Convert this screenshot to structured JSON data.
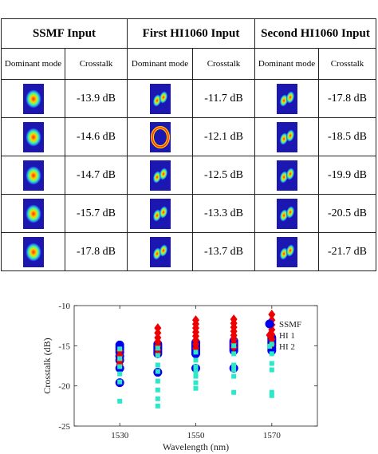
{
  "table": {
    "groups": [
      "SSMF Input",
      "First HI1060 Input",
      "Second HI1060 Input"
    ],
    "subheaders": [
      "Dominant mode",
      "Crosstalk",
      "Dominant mode",
      "Crosstalk",
      "Dominant mode",
      "Crosstalk"
    ],
    "rows": [
      {
        "ssmf": "-13.9 dB",
        "hi1": "-11.7 dB",
        "hi2": "-17.8 dB"
      },
      {
        "ssmf": "-14.6 dB",
        "hi1": "-12.1 dB",
        "hi2": "-18.5 dB"
      },
      {
        "ssmf": "-14.7 dB",
        "hi1": "-12.5 dB",
        "hi2": "-19.9 dB"
      },
      {
        "ssmf": "-15.7 dB",
        "hi1": "-13.3 dB",
        "hi2": "-20.5 dB"
      },
      {
        "ssmf": "-17.8 dB",
        "hi1": "-13.7 dB",
        "hi2": "-21.7 dB"
      }
    ],
    "mode_icons": {
      "ssmf": [
        "fundamental-mode-icon",
        "fundamental-mode-icon",
        "fundamental-mode-icon",
        "fundamental-mode-icon",
        "fundamental-mode-icon"
      ],
      "hi1": [
        "two-lobe-mode-icon",
        "ring-mode-icon",
        "two-lobe-mode-icon",
        "two-lobe-mode-icon",
        "two-lobe-mode-icon"
      ],
      "hi2": [
        "two-lobe-mode-icon",
        "two-lobe-mode-icon",
        "two-lobe-mode-icon",
        "two-lobe-mode-icon",
        "two-lobe-mode-icon"
      ]
    }
  },
  "chart_data": {
    "type": "scatter",
    "xlabel": "Wavelength (nm)",
    "ylabel": "Crosstalk (dB)",
    "xlim": [
      1518,
      1582
    ],
    "ylim": [
      -25,
      -10
    ],
    "xticks": [
      1530,
      1550,
      1570
    ],
    "yticks": [
      -10,
      -15,
      -20,
      -25
    ],
    "grid": false,
    "legend_position": "top-right",
    "series": [
      {
        "name": "SSMF",
        "marker": "circle",
        "color": "#0000ee",
        "x": [
          1530,
          1530,
          1530,
          1530,
          1530,
          1530,
          1530,
          1530,
          1540,
          1540,
          1540,
          1540,
          1540,
          1540,
          1540,
          1540,
          1550,
          1550,
          1550,
          1550,
          1550,
          1550,
          1550,
          1550,
          1550,
          1560,
          1560,
          1560,
          1560,
          1560,
          1560,
          1560,
          1560,
          1570,
          1570,
          1570,
          1570,
          1570,
          1570,
          1570,
          1570
        ],
        "y": [
          -14.9,
          -15.2,
          -15.5,
          -15.8,
          -16.3,
          -16.8,
          -17.8,
          -19.6,
          -14.8,
          -15.0,
          -15.2,
          -15.4,
          -15.6,
          -15.8,
          -16.0,
          -18.3,
          -14.6,
          -14.8,
          -15.0,
          -15.2,
          -15.4,
          -15.6,
          -15.8,
          -16.0,
          -17.8,
          -14.4,
          -14.6,
          -14.8,
          -15.0,
          -15.2,
          -15.4,
          -15.6,
          -17.8,
          -14.0,
          -14.2,
          -14.4,
          -14.6,
          -14.8,
          -15.0,
          -15.3,
          -15.6
        ]
      },
      {
        "name": "HI 1",
        "marker": "diamond",
        "color": "#ee0000",
        "x": [
          1530,
          1530,
          1530,
          1530,
          1540,
          1540,
          1540,
          1540,
          1540,
          1540,
          1540,
          1550,
          1550,
          1550,
          1550,
          1550,
          1550,
          1550,
          1550,
          1560,
          1560,
          1560,
          1560,
          1560,
          1560,
          1560,
          1560,
          1570,
          1570,
          1570,
          1570,
          1570,
          1570,
          1570
        ],
        "y": [
          -15.6,
          -16.2,
          -16.8,
          -17.3,
          -12.8,
          -13.4,
          -14.0,
          -14.5,
          -15.0,
          -15.5,
          -16.0,
          -11.8,
          -12.3,
          -12.8,
          -13.3,
          -13.8,
          -14.3,
          -14.8,
          -15.3,
          -11.7,
          -12.2,
          -12.7,
          -13.2,
          -13.7,
          -14.2,
          -14.7,
          -15.2,
          -11.1,
          -11.8,
          -12.4,
          -13.0,
          -13.6,
          -14.2,
          -14.8
        ]
      },
      {
        "name": "HI 2",
        "marker": "square",
        "color": "#2ee6c8",
        "x": [
          1530,
          1530,
          1530,
          1530,
          1530,
          1530,
          1540,
          1540,
          1540,
          1540,
          1540,
          1540,
          1540,
          1540,
          1550,
          1550,
          1550,
          1550,
          1550,
          1550,
          1550,
          1560,
          1560,
          1560,
          1560,
          1560,
          1560,
          1570,
          1570,
          1570,
          1570,
          1570,
          1570
        ],
        "y": [
          -15.4,
          -16.6,
          -17.6,
          -18.5,
          -19.5,
          -21.9,
          -15.3,
          -16.2,
          -17.4,
          -18.2,
          -19.4,
          -20.5,
          -21.6,
          -22.5,
          -15.8,
          -16.8,
          -17.6,
          -18.2,
          -18.8,
          -19.6,
          -20.3,
          -15.0,
          -16.0,
          -17.4,
          -18.0,
          -18.8,
          -20.8,
          -14.8,
          -16.0,
          -17.2,
          -18.0,
          -20.8,
          -21.2
        ]
      }
    ]
  }
}
